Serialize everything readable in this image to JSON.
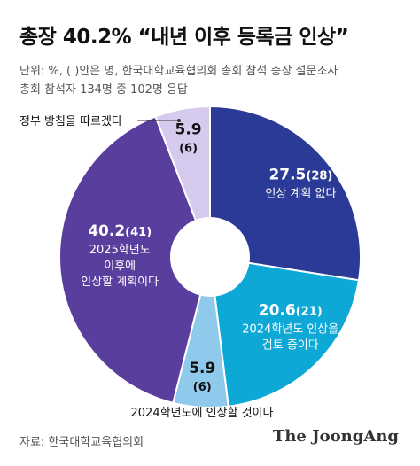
{
  "title": "총장 40.2% “내년 이후 등록금 인상”",
  "subtitle_lines": [
    "단위: %, ( )안은 명, 한국대학교육협의회 총회 참석 총장 설문조사",
    "총회 참석자 134명 중 102명 응답"
  ],
  "source": "자료: 한국대학교육협의회",
  "brand": "The JoongAng",
  "chart_data": {
    "type": "pie",
    "title": "총장 40.2% “내년 이후 등록금 인상”",
    "unit": "%",
    "slices": [
      {
        "value": 27.5,
        "value_label": "27.5",
        "count_label": "(28)",
        "label": [
          "인상 계획 없다"
        ],
        "color": "#2b3a96",
        "text_color": "#ffffff"
      },
      {
        "value": 20.6,
        "value_label": "20.6",
        "count_label": "(21)",
        "label": [
          "2024학년도 인상을",
          "검토 중이다"
        ],
        "color": "#0ea8d6",
        "text_color": "#ffffff"
      },
      {
        "value": 5.9,
        "value_label": "5.9",
        "count_label": "(6)",
        "label": [
          "2024학년도에 인상할 것이다"
        ],
        "color": "#8fc9ec",
        "text_color": "#111111"
      },
      {
        "value": 40.2,
        "value_label": "40.2",
        "count_label": "(41)",
        "label": [
          "2025학년도",
          "이후에",
          "인상할 계획이다"
        ],
        "color": "#5a3e9e",
        "text_color": "#ffffff"
      },
      {
        "value": 5.9,
        "value_label": "5.9",
        "count_label": "(6)",
        "label": [
          "정부 방침을 따르겠다"
        ],
        "color": "#d6cbee",
        "text_color": "#111111"
      }
    ]
  }
}
